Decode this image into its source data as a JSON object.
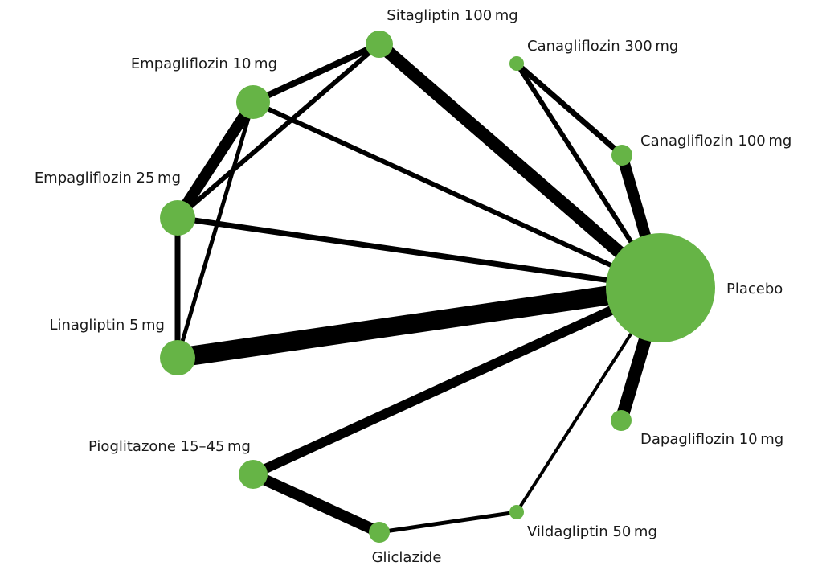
{
  "nodes": [
    {
      "label": "Sitagliptin 100 mg"
    },
    {
      "label": "Canagliflozin 300 mg"
    },
    {
      "label": "Empagliflozin 10 mg"
    },
    {
      "label": "Canagliflozin 100 mg"
    },
    {
      "label": "Empagliflozin 25 mg"
    },
    {
      "label": "Placebo"
    },
    {
      "label": "Linagliptin 5 mg"
    },
    {
      "label": "Dapagliflozin 10 mg"
    },
    {
      "label": "Pioglitazone 15–45 mg"
    },
    {
      "label": "Vildagliptin 50 mg"
    },
    {
      "label": "Gliclazide"
    }
  ]
}
